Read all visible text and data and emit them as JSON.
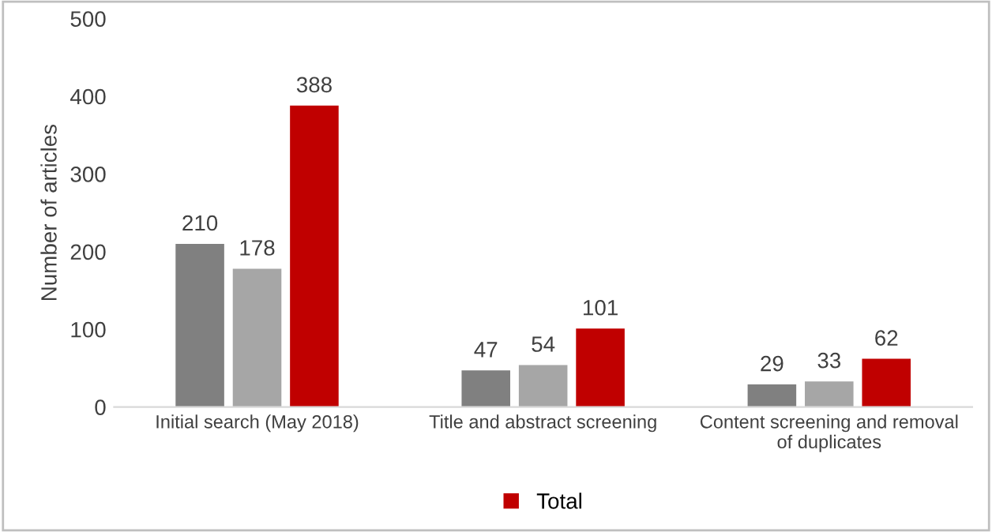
{
  "chart_data": {
    "type": "bar",
    "ylabel": "Number of articles",
    "categories": [
      "Initial search (May 2018)",
      "Title and abstract screening",
      "Content screening and removal\nof duplicates"
    ],
    "series": [
      {
        "color": "#808080",
        "values": [
          210,
          47,
          29
        ]
      },
      {
        "color": "#a6a6a6",
        "values": [
          178,
          54,
          33
        ]
      },
      {
        "name": "Total",
        "color": "#c00000",
        "values": [
          388,
          101,
          62
        ]
      }
    ],
    "ylim": [
      0,
      500
    ],
    "yticks": [
      0,
      100,
      200,
      300,
      400,
      500
    ],
    "grid": false,
    "legend": "bottom",
    "data_labels": true
  }
}
